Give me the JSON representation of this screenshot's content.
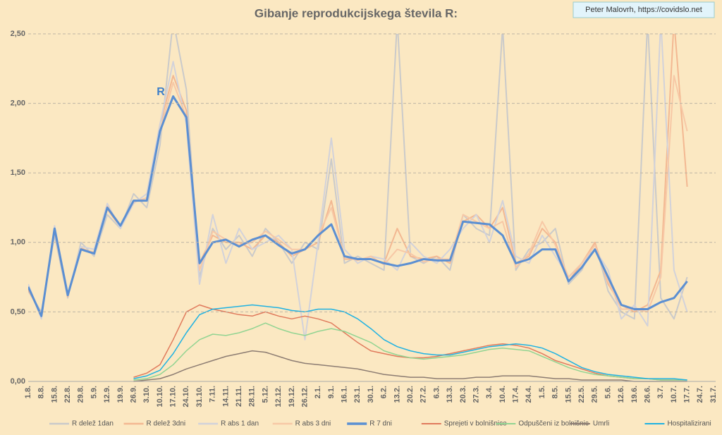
{
  "chart_data": {
    "type": "line",
    "title": "Gibanje reprodukcijskega števila R:",
    "annotations": [
      "Peter Malovrh, https://covidslo.net",
      "R"
    ],
    "categories": [
      "1.8.",
      "8.8.",
      "15.8.",
      "22.8.",
      "29.8.",
      "5.9.",
      "12.9.",
      "19.9.",
      "26.9.",
      "3.10.",
      "10.10.",
      "17.10.",
      "24.10.",
      "31.10.",
      "7.11.",
      "14.11.",
      "21.11.",
      "28.11.",
      "5.12.",
      "12.12.",
      "19.12.",
      "26.12.",
      "2.1.",
      "9.1.",
      "16.1.",
      "23.1.",
      "30.1.",
      "6.2.",
      "13.2.",
      "20.2.",
      "27.2.",
      "6.3.",
      "13.3.",
      "20.3.",
      "27.3.",
      "3.4.",
      "10.4.",
      "17.4.",
      "24.4.",
      "1.5.",
      "8.5.",
      "15.5.",
      "22.5.",
      "29.5.",
      "5.6.",
      "12.6.",
      "19.6.",
      "26.6.",
      "3.7.",
      "10.7.",
      "17.7.",
      "24.7.",
      "31.7."
    ],
    "ylim": [
      0,
      2.5
    ],
    "yticks": [
      {
        "value": 0,
        "label": "0,00"
      },
      {
        "value": 0.5,
        "label": "0,50"
      },
      {
        "value": 1,
        "label": "1,00"
      },
      {
        "value": 1.5,
        "label": "1,50"
      },
      {
        "value": 2,
        "label": "2,00"
      },
      {
        "value": 2.5,
        "label": "2,50"
      }
    ],
    "grid": true,
    "legend": "bottom",
    "series": [
      {
        "name": "R delež 1dan",
        "color": "#cacaca",
        "width": 2,
        "values": [
          0.65,
          0.5,
          1.05,
          0.6,
          1.0,
          0.9,
          1.2,
          1.1,
          1.35,
          1.25,
          1.7,
          2.6,
          2.1,
          0.75,
          1.1,
          0.95,
          1.05,
          0.9,
          1.1,
          1.0,
          0.85,
          1.0,
          0.95,
          1.6,
          0.85,
          0.9,
          0.85,
          0.8,
          2.6,
          0.9,
          0.85,
          0.9,
          0.8,
          1.2,
          1.1,
          1.05,
          2.55,
          0.8,
          0.95,
          1.0,
          1.1,
          0.7,
          0.8,
          1.0,
          0.65,
          0.5,
          0.45,
          2.6,
          0.6,
          0.45,
          0.75,
          null,
          null
        ]
      },
      {
        "name": "R delež 3dni",
        "color": "#f3b892",
        "width": 2,
        "values": [
          0.66,
          0.48,
          1.08,
          0.61,
          0.96,
          0.92,
          1.24,
          1.11,
          1.3,
          1.3,
          1.85,
          2.2,
          1.95,
          0.85,
          1.05,
          1.0,
          1.0,
          0.95,
          1.05,
          1.0,
          0.9,
          0.95,
          1.0,
          1.3,
          0.88,
          0.88,
          0.88,
          0.85,
          1.1,
          0.9,
          0.88,
          0.9,
          0.85,
          1.15,
          1.2,
          1.1,
          1.25,
          0.85,
          0.9,
          1.1,
          1.0,
          0.72,
          0.85,
          1.0,
          0.7,
          0.55,
          0.5,
          0.55,
          0.8,
          2.6,
          1.4,
          null,
          null
        ]
      },
      {
        "name": "R abs 1 dan",
        "color": "#d2d2da",
        "width": 2,
        "values": [
          0.7,
          0.45,
          1.12,
          0.63,
          0.97,
          0.95,
          1.28,
          1.1,
          1.28,
          1.35,
          1.85,
          2.3,
          1.85,
          0.7,
          1.2,
          0.85,
          1.1,
          0.95,
          1.0,
          1.05,
          0.95,
          0.3,
          1.0,
          1.75,
          0.95,
          0.85,
          0.9,
          0.88,
          0.8,
          1.0,
          0.9,
          0.85,
          0.95,
          1.1,
          1.2,
          1.0,
          1.3,
          0.9,
          0.85,
          1.05,
          0.9,
          0.75,
          0.85,
          0.95,
          0.8,
          0.45,
          0.55,
          0.4,
          2.6,
          0.8,
          0.5,
          null,
          null
        ]
      },
      {
        "name": "R abs 3 dni",
        "color": "#f7c8a6",
        "width": 2,
        "values": [
          0.68,
          0.47,
          1.1,
          0.62,
          0.95,
          0.93,
          1.26,
          1.12,
          1.29,
          1.32,
          1.8,
          2.15,
          1.9,
          0.8,
          1.08,
          1.02,
          0.98,
          1.0,
          1.08,
          1.02,
          0.95,
          0.95,
          1.05,
          1.25,
          0.9,
          0.87,
          0.9,
          0.84,
          0.95,
          0.92,
          0.86,
          0.88,
          0.88,
          1.2,
          1.15,
          1.1,
          1.15,
          0.82,
          0.92,
          1.15,
          0.98,
          0.75,
          0.85,
          0.98,
          0.72,
          0.52,
          0.52,
          0.5,
          0.75,
          2.2,
          1.8,
          null,
          null
        ]
      },
      {
        "name": "R 7 dni",
        "color": "#5b8fd2",
        "width": 3,
        "values": [
          0.68,
          0.47,
          1.1,
          0.62,
          0.95,
          0.92,
          1.25,
          1.12,
          1.3,
          1.3,
          1.8,
          2.05,
          1.9,
          0.85,
          1.0,
          1.02,
          0.97,
          1.02,
          1.05,
          0.98,
          0.92,
          0.95,
          1.05,
          1.13,
          0.9,
          0.88,
          0.88,
          0.85,
          0.83,
          0.85,
          0.88,
          0.87,
          0.87,
          1.15,
          1.14,
          1.13,
          1.05,
          0.85,
          0.88,
          0.95,
          0.95,
          0.72,
          0.82,
          0.95,
          0.75,
          0.55,
          0.52,
          0.52,
          0.57,
          0.6,
          0.72,
          null,
          null
        ]
      },
      {
        "name": "Sprejeti v bolnišnice",
        "color": "#e07a5c",
        "width": 1.5,
        "values": [
          null,
          null,
          null,
          null,
          null,
          null,
          null,
          null,
          0.03,
          0.06,
          0.12,
          0.3,
          0.5,
          0.55,
          0.52,
          0.5,
          0.48,
          0.47,
          0.5,
          0.47,
          0.45,
          0.47,
          0.45,
          0.42,
          0.35,
          0.28,
          0.22,
          0.2,
          0.18,
          0.17,
          0.17,
          0.18,
          0.2,
          0.22,
          0.24,
          0.26,
          0.27,
          0.26,
          0.24,
          0.2,
          0.15,
          0.12,
          0.09,
          0.06,
          0.04,
          0.03,
          0.02,
          0.02,
          0.01,
          0.01,
          0.01,
          null,
          null
        ]
      },
      {
        "name": "Odpuščeni iz bolnišnic",
        "color": "#92d492",
        "width": 1.5,
        "values": [
          null,
          null,
          null,
          null,
          null,
          null,
          null,
          null,
          0.01,
          0.02,
          0.05,
          0.12,
          0.22,
          0.3,
          0.34,
          0.33,
          0.35,
          0.38,
          0.42,
          0.38,
          0.35,
          0.33,
          0.36,
          0.38,
          0.36,
          0.32,
          0.28,
          0.22,
          0.19,
          0.17,
          0.16,
          0.17,
          0.18,
          0.19,
          0.21,
          0.23,
          0.24,
          0.23,
          0.22,
          0.18,
          0.14,
          0.1,
          0.07,
          0.05,
          0.04,
          0.03,
          0.02,
          0.02,
          0.01,
          0.01,
          0.01,
          null,
          null
        ]
      },
      {
        "name": "Umrli",
        "color": "#8c7c72",
        "width": 1.5,
        "values": [
          null,
          null,
          null,
          null,
          null,
          null,
          null,
          null,
          0,
          0.01,
          0.02,
          0.05,
          0.09,
          0.12,
          0.15,
          0.18,
          0.2,
          0.22,
          0.21,
          0.18,
          0.15,
          0.13,
          0.12,
          0.11,
          0.1,
          0.09,
          0.07,
          0.05,
          0.04,
          0.03,
          0.03,
          0.02,
          0.02,
          0.02,
          0.03,
          0.03,
          0.04,
          0.04,
          0.04,
          0.03,
          0.02,
          0.02,
          0.01,
          0.01,
          0.01,
          0.01,
          0,
          0,
          0,
          0,
          0,
          null,
          null
        ]
      },
      {
        "name": "Hospitalizirani",
        "color": "#1fb2e2",
        "width": 1.5,
        "values": [
          null,
          null,
          null,
          null,
          null,
          null,
          null,
          null,
          0.02,
          0.04,
          0.08,
          0.2,
          0.35,
          0.48,
          0.52,
          0.53,
          0.54,
          0.55,
          0.54,
          0.53,
          0.51,
          0.5,
          0.52,
          0.52,
          0.5,
          0.45,
          0.38,
          0.3,
          0.25,
          0.22,
          0.2,
          0.19,
          0.19,
          0.21,
          0.23,
          0.25,
          0.26,
          0.27,
          0.26,
          0.24,
          0.2,
          0.15,
          0.1,
          0.07,
          0.05,
          0.04,
          0.03,
          0.02,
          0.02,
          0.02,
          0.01,
          null,
          null
        ]
      }
    ]
  }
}
